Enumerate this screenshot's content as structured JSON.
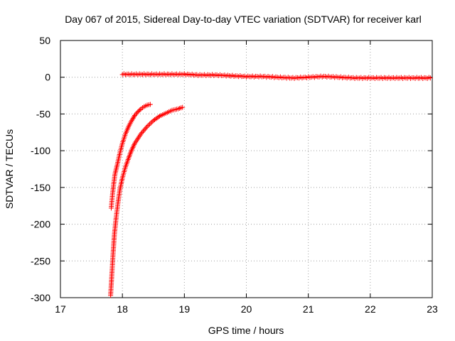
{
  "chart_data": {
    "type": "scatter",
    "title": "Day 067 of 2015, Sidereal Day-to-day VTEC variation (SDTVAR) for receiver karl",
    "xlabel": "GPS time / hours",
    "ylabel": "SDTVAR / TECUs",
    "xlim": [
      17,
      23
    ],
    "ylim": [
      -300,
      50
    ],
    "xticks": [
      17,
      18,
      19,
      20,
      21,
      22,
      23
    ],
    "yticks": [
      -300,
      -250,
      -200,
      -150,
      -100,
      -50,
      0,
      50
    ],
    "grid": true,
    "marker": "+",
    "colors": {
      "series": "#ff0000"
    },
    "series": [
      {
        "x": [
          18.0,
          18.25,
          18.5,
          18.75,
          19.0,
          19.25,
          19.5,
          19.75,
          20.0,
          20.25,
          20.5,
          20.75,
          21.0,
          21.25,
          21.5,
          21.75,
          22.0,
          22.25,
          22.5,
          22.75,
          22.97
        ],
        "y": [
          4,
          4,
          4,
          4,
          4,
          3,
          3,
          2,
          1,
          1,
          0,
          -1,
          0,
          1,
          0,
          -1,
          -1,
          -1,
          -1,
          -1,
          -1
        ]
      },
      {
        "x": [
          17.82,
          17.84,
          17.86,
          17.88,
          17.92,
          17.96,
          18.0,
          18.05,
          18.1,
          18.15,
          18.2,
          18.25,
          18.3,
          18.35,
          18.4,
          18.45
        ],
        "y": [
          -178,
          -160,
          -145,
          -132,
          -118,
          -103,
          -90,
          -77,
          -67,
          -59,
          -52,
          -47,
          -43,
          -40,
          -38,
          -37
        ]
      },
      {
        "x": [
          17.81,
          17.83,
          17.85,
          17.87,
          17.9,
          17.93,
          17.96,
          18.0,
          18.05,
          18.1,
          18.15,
          18.2,
          18.3,
          18.4,
          18.5,
          18.6,
          18.7,
          18.8,
          18.9,
          18.97
        ],
        "y": [
          -297,
          -268,
          -240,
          -215,
          -190,
          -170,
          -153,
          -137,
          -122,
          -110,
          -99,
          -90,
          -77,
          -67,
          -59,
          -53,
          -49,
          -45,
          -43,
          -41
        ]
      }
    ]
  }
}
